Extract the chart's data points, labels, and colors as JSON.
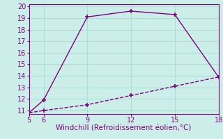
{
  "line1_x": [
    5,
    6,
    9,
    12,
    15,
    18
  ],
  "line1_y": [
    10.8,
    11.9,
    19.1,
    19.6,
    19.3,
    13.9
  ],
  "line2_x": [
    5,
    6,
    9,
    12,
    15,
    18
  ],
  "line2_y": [
    10.8,
    11.0,
    11.5,
    12.3,
    13.1,
    13.9
  ],
  "line_color": "#800080",
  "line1_style": "-",
  "line2_style": "--",
  "marker": "+",
  "marker_size": 5,
  "xlabel": "Windchill (Refroidissement éolien,°C)",
  "xlabel_color": "#800080",
  "xlabel_fontsize": 7.5,
  "bg_color": "#cceee8",
  "grid_color": "#aaddd8",
  "tick_color": "#800080",
  "spine_color": "#800080",
  "xlim": [
    5,
    18
  ],
  "ylim": [
    10.7,
    20.2
  ],
  "xticks": [
    5,
    6,
    9,
    12,
    15,
    18
  ],
  "yticks": [
    11,
    12,
    13,
    14,
    15,
    16,
    17,
    18,
    19,
    20
  ],
  "tick_fontsize": 7,
  "linewidth": 1.0
}
